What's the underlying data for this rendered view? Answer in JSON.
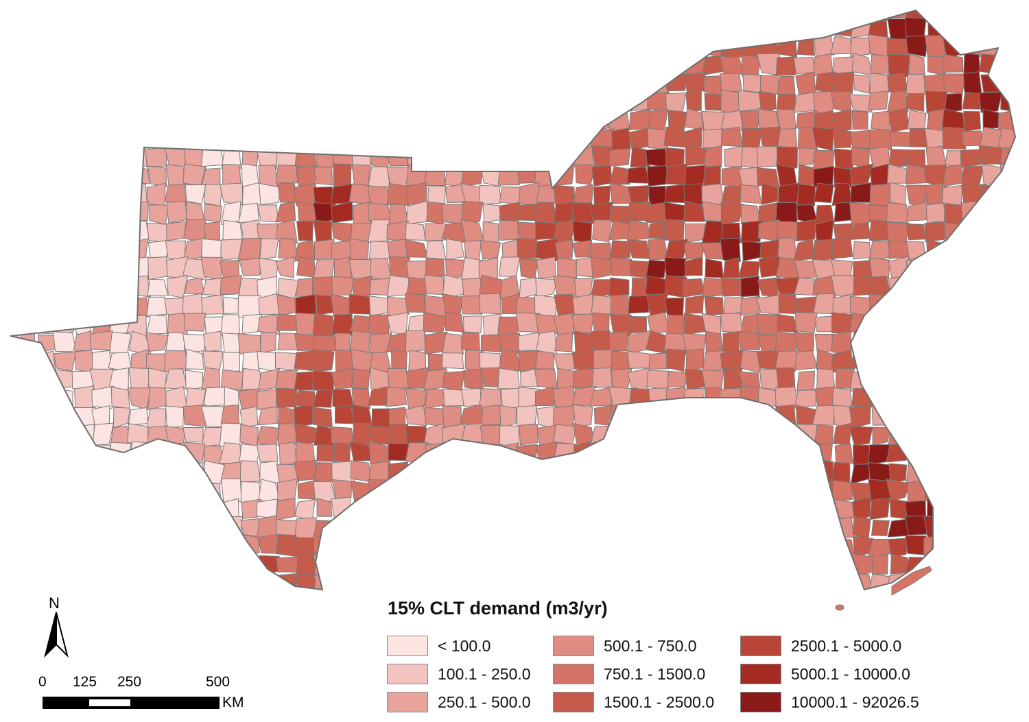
{
  "legend": {
    "title": "15% CLT demand (m3/yr)",
    "classes": [
      {
        "label": "< 100.0",
        "color": "#fbe4e2"
      },
      {
        "label": "100.1 - 250.0",
        "color": "#f3c4bf"
      },
      {
        "label": "250.1 - 500.0",
        "color": "#e8a39c"
      },
      {
        "label": "500.1 - 750.0",
        "color": "#df8d82"
      },
      {
        "label": "750.1 - 1500.0",
        "color": "#d47466"
      },
      {
        "label": "1500.1 - 2500.0",
        "color": "#c55b4a"
      },
      {
        "label": "2500.1 - 5000.0",
        "color": "#b84535"
      },
      {
        "label": "5000.1 - 10000.0",
        "color": "#a32b22"
      },
      {
        "label": "10000.1 - 92026.5",
        "color": "#8a1a18"
      }
    ]
  },
  "north_arrow": {
    "label": "N"
  },
  "scale_bar": {
    "ticks": [
      "0",
      "125",
      "250",
      "500"
    ],
    "unit": "KM"
  },
  "colors": {
    "county_border": "#7a7a7a",
    "background": "#ffffff"
  }
}
